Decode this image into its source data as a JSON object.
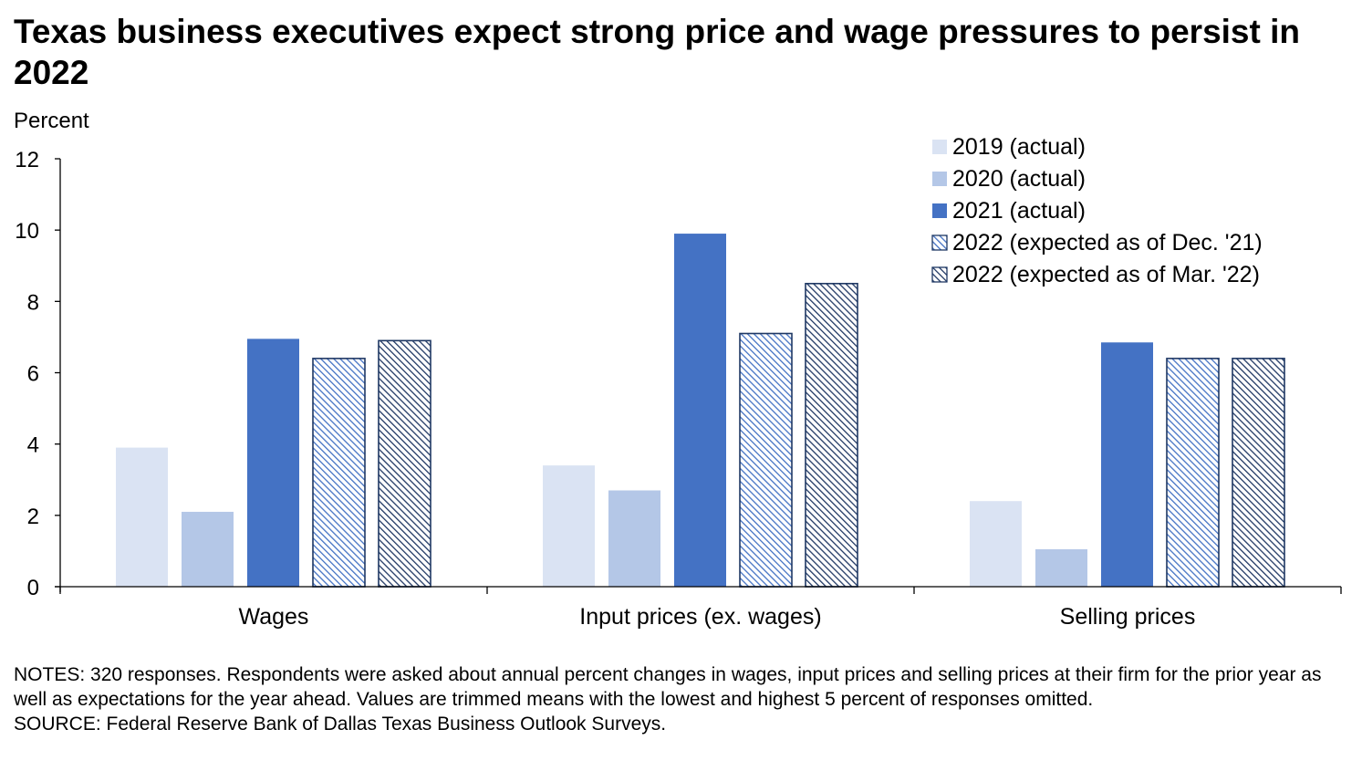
{
  "title": "Texas business executives expect strong price and wage pressures to persist in 2022",
  "notes": "NOTES: 320 responses. Respondents were asked about annual percent changes in wages, input prices and selling prices at their firm for the prior year as well as expectations for the year ahead. Values are trimmed means with the lowest and highest 5 percent of responses omitted.",
  "source": "SOURCE: Federal Reserve Bank of Dallas Texas Business Outlook Surveys.",
  "colors": {
    "c2019": "#dae3f3",
    "c2020": "#b4c7e7",
    "c2021": "#4472c4",
    "hatch_dec": "#4472c4",
    "hatch_mar": "#203864",
    "outline": "#1f3864",
    "axis": "#000000"
  },
  "chart_data": {
    "type": "bar",
    "title": "Texas business executives expect strong price and wage pressures to persist in 2022",
    "ylabel": "Percent",
    "xlabel": "",
    "ylim": [
      0,
      12
    ],
    "yticks": [
      0,
      2,
      4,
      6,
      8,
      10,
      12
    ],
    "grid": false,
    "legend_position": "top-right",
    "categories": [
      "Wages",
      "Input prices (ex. wages)",
      "Selling prices"
    ],
    "series": [
      {
        "name": "2019 (actual)",
        "values": [
          3.9,
          3.4,
          2.4
        ],
        "style": "solid-light"
      },
      {
        "name": "2020 (actual)",
        "values": [
          2.1,
          2.7,
          1.05
        ],
        "style": "solid-medium"
      },
      {
        "name": "2021 (actual)",
        "values": [
          6.95,
          9.9,
          6.85
        ],
        "style": "solid-dark"
      },
      {
        "name": "2022 (expected as of Dec. '21)",
        "values": [
          6.4,
          7.1,
          6.4
        ],
        "style": "hatch-blue"
      },
      {
        "name": "2022 (expected as of Mar. '22)",
        "values": [
          6.9,
          8.5,
          6.4
        ],
        "style": "hatch-navy"
      }
    ]
  }
}
